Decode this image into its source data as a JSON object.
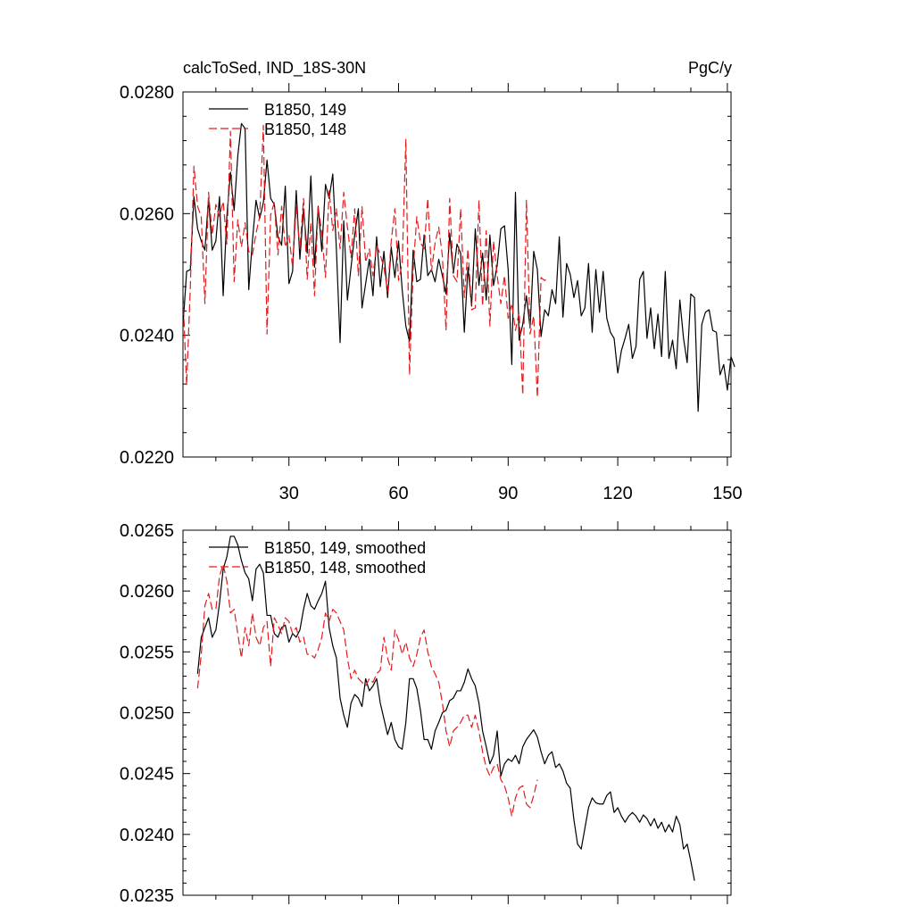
{
  "chart_data": [
    {
      "id": "top",
      "type": "line",
      "title_left": "calcToSed, IND_18S-30N",
      "title_right": "PgC/y",
      "xlim": [
        1,
        151
      ],
      "ylim": [
        0.022,
        0.028
      ],
      "xticks": [
        30,
        60,
        90,
        120,
        150
      ],
      "xtick_labels": [
        "30",
        "60",
        "90",
        "120",
        "150"
      ],
      "yticks": [
        0.022,
        0.024,
        0.026,
        0.028
      ],
      "ytick_labels": [
        "0.0220",
        "0.0240",
        "0.0260",
        "0.0280"
      ],
      "show_xtick_labels": true,
      "legend_position": "top-left",
      "series": [
        {
          "name": "B1850, 149",
          "color": "#000000",
          "dash": "solid",
          "x0": 1,
          "values": [
            0.02415,
            0.02505,
            0.02508,
            0.02628,
            0.02575,
            0.02555,
            0.0254,
            0.02625,
            0.0254,
            0.02555,
            0.02628,
            0.02465,
            0.02595,
            0.02668,
            0.02605,
            0.02695,
            0.02748,
            0.0274,
            0.02475,
            0.02555,
            0.02622,
            0.02592,
            0.02618,
            0.02688,
            0.02625,
            0.02615,
            0.02562,
            0.02548,
            0.02645,
            0.02485,
            0.02505,
            0.02638,
            0.02525,
            0.02608,
            0.02535,
            0.02662,
            0.02512,
            0.02612,
            0.02538,
            0.02648,
            0.02625,
            0.02665,
            0.0254,
            0.02388,
            0.02588,
            0.02458,
            0.02512,
            0.02565,
            0.02608,
            0.02445,
            0.02485,
            0.02525,
            0.02465,
            0.02562,
            0.0248,
            0.02538,
            0.02462,
            0.02545,
            0.02495,
            0.02555,
            0.02475,
            0.02415,
            0.0239,
            0.0254,
            0.02488,
            0.02492,
            0.02565,
            0.02498,
            0.02508,
            0.02488,
            0.02525,
            0.02498,
            0.02468,
            0.02568,
            0.02502,
            0.0255,
            0.02535,
            0.02405,
            0.02512,
            0.02448,
            0.02575,
            0.02482,
            0.02535,
            0.02458,
            0.02565,
            0.02482,
            0.02515,
            0.02575,
            0.0258,
            0.02508,
            0.02352,
            0.02635,
            0.02392,
            0.02418,
            0.02465,
            0.02412,
            0.02538,
            0.02508,
            0.02398,
            0.02442,
            0.02432,
            0.02475,
            0.02452,
            0.02562,
            0.0243,
            0.02518,
            0.025,
            0.02462,
            0.0249,
            0.02432,
            0.02445,
            0.02518,
            0.02405,
            0.02508,
            0.02438,
            0.02505,
            0.02428,
            0.02405,
            0.02395,
            0.02338,
            0.02375,
            0.02395,
            0.02418,
            0.02362,
            0.02382,
            0.02492,
            0.02505,
            0.02395,
            0.02445,
            0.02378,
            0.02435,
            0.02365,
            0.02505,
            0.02362,
            0.02392,
            0.02345,
            0.02458,
            0.02395,
            0.02355,
            0.02468,
            0.02462,
            0.02275,
            0.02418,
            0.02438,
            0.02442,
            0.02408,
            0.02405,
            0.02335,
            0.02352,
            0.0231,
            0.02365,
            0.02348
          ]
        },
        {
          "name": "B1850, 148",
          "color": "#e41a1c",
          "dash": "dashed",
          "x0": 1,
          "values": [
            0.02465,
            0.02318,
            0.02478,
            0.02678,
            0.02612,
            0.02595,
            0.02452,
            0.02635,
            0.02565,
            0.02615,
            0.02595,
            0.0262,
            0.0255,
            0.02735,
            0.02488,
            0.0259,
            0.02545,
            0.02585,
            0.02538,
            0.02532,
            0.02568,
            0.02595,
            0.02745,
            0.02402,
            0.02598,
            0.02618,
            0.02532,
            0.02612,
            0.02545,
            0.02565,
            0.02512,
            0.02612,
            0.02542,
            0.02625,
            0.02492,
            0.02585,
            0.02465,
            0.02612,
            0.02568,
            0.02495,
            0.02638,
            0.02572,
            0.02608,
            0.02542,
            0.02635,
            0.02578,
            0.02528,
            0.02608,
            0.02498,
            0.02612,
            0.0252,
            0.02542,
            0.02498,
            0.02548,
            0.02532,
            0.02512,
            0.02472,
            0.02555,
            0.02608,
            0.0249,
            0.02518,
            0.02722,
            0.02335,
            0.02508,
            0.02595,
            0.02552,
            0.02542,
            0.02625,
            0.02505,
            0.02552,
            0.02578,
            0.0253,
            0.02408,
            0.02625,
            0.02498,
            0.02488,
            0.02608,
            0.02462,
            0.02542,
            0.02442,
            0.02445,
            0.02622,
            0.02448,
            0.02572,
            0.02415,
            0.02555,
            0.02498,
            0.02452,
            0.02498,
            0.02428,
            0.02452,
            0.02408,
            0.02438,
            0.02302,
            0.02622,
            0.02402,
            0.02432,
            0.02298,
            0.02495,
            0.0249,
            0.02495
          ]
        }
      ]
    },
    {
      "id": "bottom",
      "type": "line",
      "xlim": [
        1,
        151
      ],
      "ylim": [
        0.0235,
        0.0265
      ],
      "xticks": [
        30,
        60,
        90,
        120,
        150
      ],
      "yticks": [
        0.0235,
        0.024,
        0.0245,
        0.025,
        0.0255,
        0.026,
        0.0265
      ],
      "ytick_labels": [
        "0.0235",
        "0.0240",
        "0.0245",
        "0.0250",
        "0.0255",
        "0.0260",
        "0.0265"
      ],
      "show_xtick_labels": false,
      "legend_position": "top-left",
      "series": [
        {
          "name": "B1850, 149, smoothed",
          "color": "#000000",
          "dash": "solid",
          "x0": 5,
          "values": [
            0.02532,
            0.02562,
            0.0257,
            0.02578,
            0.02562,
            0.02568,
            0.0259,
            0.02618,
            0.02628,
            0.02645,
            0.02645,
            0.02638,
            0.02625,
            0.02615,
            0.0261,
            0.02592,
            0.02618,
            0.02622,
            0.02615,
            0.0258,
            0.0258,
            0.02565,
            0.02562,
            0.0257,
            0.02572,
            0.02558,
            0.02565,
            0.02562,
            0.02568,
            0.02585,
            0.02598,
            0.02588,
            0.02585,
            0.02592,
            0.02598,
            0.02608,
            0.0257,
            0.02555,
            0.02545,
            0.02512,
            0.02498,
            0.02488,
            0.02508,
            0.02515,
            0.02512,
            0.02505,
            0.02528,
            0.02518,
            0.02522,
            0.02528,
            0.02508,
            0.02495,
            0.02482,
            0.02492,
            0.02478,
            0.02472,
            0.0247,
            0.02492,
            0.02528,
            0.02528,
            0.0252,
            0.02502,
            0.02478,
            0.02478,
            0.0247,
            0.02485,
            0.02492,
            0.025,
            0.02502,
            0.0251,
            0.02512,
            0.02518,
            0.02518,
            0.02525,
            0.02536,
            0.02528,
            0.02522,
            0.02508,
            0.02485,
            0.02472,
            0.02458,
            0.02465,
            0.02485,
            0.02448,
            0.02458,
            0.02462,
            0.0246,
            0.02465,
            0.02458,
            0.02472,
            0.02478,
            0.02482,
            0.02486,
            0.0248,
            0.02468,
            0.02458,
            0.02465,
            0.02468,
            0.02455,
            0.02458,
            0.02452,
            0.02442,
            0.02438,
            0.02412,
            0.02392,
            0.02388,
            0.02405,
            0.02422,
            0.0243,
            0.02426,
            0.02425,
            0.02425,
            0.02432,
            0.02435,
            0.02418,
            0.02422,
            0.02415,
            0.0241,
            0.02415,
            0.02418,
            0.02415,
            0.0241,
            0.02416,
            0.02413,
            0.02407,
            0.02413,
            0.02405,
            0.0241,
            0.02402,
            0.02408,
            0.02402,
            0.02415,
            0.02408,
            0.02388,
            0.02392,
            0.02378,
            0.02362
          ]
        },
        {
          "name": "B1850, 148, smoothed",
          "color": "#e41a1c",
          "dash": "dashed",
          "x0": 5,
          "values": [
            0.0252,
            0.02548,
            0.02588,
            0.02598,
            0.02585,
            0.02585,
            0.02612,
            0.02622,
            0.02608,
            0.02582,
            0.02585,
            0.02565,
            0.02545,
            0.0257,
            0.02555,
            0.02582,
            0.02562,
            0.02555,
            0.0257,
            0.02575,
            0.02538,
            0.02578,
            0.02572,
            0.02565,
            0.02578,
            0.02575,
            0.02565,
            0.0257,
            0.02558,
            0.02562,
            0.02548,
            0.02548,
            0.02545,
            0.02552,
            0.02562,
            0.02582,
            0.02575,
            0.02585,
            0.02582,
            0.02575,
            0.02568,
            0.02545,
            0.02528,
            0.02535,
            0.02528,
            0.02525,
            0.02522,
            0.02528,
            0.02525,
            0.02532,
            0.02535,
            0.02562,
            0.02545,
            0.02535,
            0.02568,
            0.0256,
            0.02548,
            0.02558,
            0.02545,
            0.02538,
            0.02548,
            0.02562,
            0.02568,
            0.0255,
            0.02538,
            0.02532,
            0.02525,
            0.02508,
            0.02485,
            0.02472,
            0.02485,
            0.02488,
            0.02492,
            0.02498,
            0.02498,
            0.02488,
            0.02498,
            0.02485,
            0.02468,
            0.02455,
            0.02448,
            0.02455,
            0.02458,
            0.02445,
            0.0244,
            0.0243,
            0.02415,
            0.0243,
            0.02438,
            0.0244,
            0.02425,
            0.02422,
            0.02432,
            0.02445
          ]
        }
      ]
    }
  ]
}
